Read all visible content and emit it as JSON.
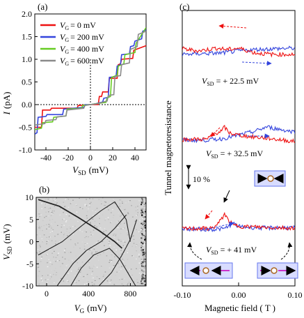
{
  "panel_labels": {
    "a": "(a)",
    "b": "(b)",
    "c": "(c)"
  },
  "panel_a": {
    "ylabel_main": "I",
    "ylabel_unit": "(pA)",
    "xlabel_main": "V",
    "xlabel_sub": "SD",
    "xlabel_unit": "(mV)",
    "legend_prefix_main": "V",
    "legend_prefix_sub": "G",
    "legend_values": [
      "= 0 mV",
      "= 200 mV",
      "= 400 mV",
      "= 600 mV"
    ]
  },
  "panel_b": {
    "ylabel_main": "V",
    "ylabel_sub": "SD",
    "ylabel_unit": "(mV)",
    "xlabel_main": "V",
    "xlabel_sub": "G",
    "xlabel_unit": "(mV)"
  },
  "panel_c": {
    "ylabel": "Tunnel magnetoresistance",
    "xlabel": "Magnetic field ( T )",
    "scalebar": "10 %",
    "vsd_main": "V",
    "vsd_sub": "SD",
    "vsd_values": [
      "= + 22.5 mV",
      "= + 32.5 mV",
      "= + 41 mV"
    ]
  },
  "colors": {
    "red": "#ee1111",
    "blue": "#3344dd",
    "green": "#66cc22",
    "gray": "#8a8a8a"
  },
  "chart_data": [
    {
      "panel": "a",
      "type": "line",
      "xlim": [
        -50,
        50
      ],
      "ylim": [
        -1.0,
        2.0
      ],
      "xticks": [
        -40,
        -20,
        0,
        20,
        40
      ],
      "yticks": [
        -1.0,
        -0.5,
        0.0,
        0.5,
        1.0,
        1.5,
        2.0
      ],
      "series": [
        {
          "name": "VG = 0 mV",
          "color": "red",
          "x": [
            -50,
            -44,
            -43,
            -36,
            -35,
            -12,
            -11,
            0,
            7,
            8,
            10,
            11,
            16,
            17,
            24,
            25,
            27,
            28,
            38,
            39,
            50
          ],
          "y": [
            -0.5,
            -0.5,
            -0.12,
            -0.12,
            -0.08,
            -0.08,
            -0.02,
            0,
            0,
            0.18,
            0.18,
            0.28,
            0.28,
            0.58,
            0.58,
            0.88,
            0.9,
            1.0,
            1.02,
            1.2,
            1.3
          ]
        },
        {
          "name": "VG = 200 mV",
          "color": "blue",
          "x": [
            -50,
            -48,
            -47,
            -40,
            -39,
            -25,
            -24,
            -6,
            -5,
            0,
            5,
            11,
            12,
            16,
            17,
            23,
            24,
            27,
            28,
            35,
            36,
            39,
            40,
            46,
            47,
            50
          ],
          "y": [
            -0.65,
            -0.62,
            -0.28,
            -0.26,
            -0.22,
            -0.22,
            -0.1,
            -0.06,
            0,
            0,
            0.02,
            0.06,
            0.14,
            0.16,
            0.6,
            0.62,
            0.85,
            0.88,
            1.1,
            1.12,
            1.28,
            1.3,
            1.4,
            1.45,
            1.62,
            1.65
          ]
        },
        {
          "name": "VG = 400 mV",
          "color": "green",
          "x": [
            -50,
            -44,
            -43,
            -34,
            -33,
            -22,
            -21,
            -8,
            -7,
            0,
            5,
            14,
            15,
            18,
            19,
            24,
            25,
            30,
            31,
            40,
            41,
            50
          ],
          "y": [
            -0.55,
            -0.52,
            -0.4,
            -0.38,
            -0.28,
            -0.25,
            -0.1,
            -0.08,
            -0.02,
            0,
            0.02,
            0.05,
            0.15,
            0.18,
            0.6,
            0.65,
            0.85,
            0.9,
            1.1,
            1.15,
            1.35,
            1.7
          ]
        },
        {
          "name": "VG = 600 mV",
          "color": "gray",
          "x": [
            -50,
            -41,
            -40,
            -31,
            -30,
            -22,
            -21,
            -6,
            -5,
            0,
            6,
            15,
            16,
            21,
            22,
            27,
            28,
            35,
            36,
            42,
            43,
            50
          ],
          "y": [
            -0.45,
            -0.42,
            -0.35,
            -0.33,
            -0.27,
            -0.25,
            -0.12,
            -0.08,
            -0.02,
            0,
            0.02,
            0.08,
            0.2,
            0.22,
            0.62,
            0.64,
            0.88,
            0.92,
            1.22,
            1.28,
            1.55,
            1.62
          ]
        }
      ]
    },
    {
      "panel": "b",
      "type": "heatmap",
      "xlim": [
        -100,
        950
      ],
      "ylim": [
        -10,
        10
      ],
      "xticks": [
        0,
        400,
        800
      ],
      "yticks": [
        -10,
        -5,
        0,
        5,
        10
      ],
      "lines": [
        {
          "x": [
            -80,
            120,
            300,
            500,
            650,
            720
          ],
          "y": [
            9.5,
            8,
            5.5,
            2.5,
            0,
            -1.5
          ]
        },
        {
          "x": [
            -80,
            150,
            330,
            520,
            650,
            760,
            800
          ],
          "y": [
            -3,
            0,
            3.5,
            7,
            9,
            5,
            0
          ]
        },
        {
          "x": [
            100,
            250,
            380,
            520,
            650,
            760
          ],
          "y": [
            -10,
            -5,
            -2,
            0,
            3,
            6
          ]
        },
        {
          "x": [
            230,
            330,
            450,
            600,
            700,
            800,
            850
          ],
          "y": [
            -10,
            -6,
            -3,
            -1.5,
            -4,
            -8,
            -10
          ]
        },
        {
          "x": [
            500,
            620,
            720,
            800,
            860
          ],
          "y": [
            -10,
            -7,
            -3,
            0.5,
            5
          ]
        }
      ]
    },
    {
      "panel": "c",
      "type": "line",
      "xlim": [
        -0.1,
        0.1
      ],
      "xticks": [
        -0.1,
        0.0,
        0.1
      ],
      "curves": [
        {
          "vsd": "+22.5 mV",
          "offset": 58,
          "red": [
            [
              -0.1,
              2
            ],
            [
              -0.07,
              -1
            ],
            [
              -0.04,
              3
            ],
            [
              -0.02,
              1
            ],
            [
              0,
              3
            ],
            [
              0.03,
              -4
            ],
            [
              0.06,
              -6
            ],
            [
              0.1,
              -6
            ]
          ],
          "blue": [
            [
              -0.1,
              -6
            ],
            [
              -0.07,
              -5
            ],
            [
              -0.03,
              -4
            ],
            [
              0,
              -1
            ],
            [
              0.03,
              1
            ],
            [
              0.06,
              2
            ],
            [
              0.1,
              3
            ]
          ]
        },
        {
          "vsd": "+32.5 mV",
          "offset": 0,
          "red": [
            [
              -0.1,
              0
            ],
            [
              -0.055,
              0.5
            ],
            [
              -0.045,
              8
            ],
            [
              -0.03,
              12
            ],
            [
              -0.025,
              18
            ],
            [
              -0.018,
              10
            ],
            [
              -0.005,
              7
            ],
            [
              0.02,
              4
            ],
            [
              0.05,
              2
            ],
            [
              0.08,
              -1
            ],
            [
              0.1,
              -3
            ]
          ],
          "blue": [
            [
              -0.1,
              -1
            ],
            [
              -0.06,
              -1
            ],
            [
              -0.03,
              1
            ],
            [
              0,
              6
            ],
            [
              0.03,
              12
            ],
            [
              0.05,
              18
            ],
            [
              0.07,
              15
            ],
            [
              0.09,
              12
            ],
            [
              0.1,
              11
            ]
          ]
        },
        {
          "vsd": "+41 mV",
          "offset": -58,
          "red": [
            [
              -0.1,
              0
            ],
            [
              -0.05,
              0.5
            ],
            [
              -0.04,
              4
            ],
            [
              -0.03,
              14
            ],
            [
              -0.025,
              22
            ],
            [
              -0.02,
              14
            ],
            [
              -0.01,
              5
            ],
            [
              0.01,
              3
            ],
            [
              0.05,
              2
            ],
            [
              0.1,
              1
            ]
          ],
          "blue": [
            [
              -0.1,
              0
            ],
            [
              -0.05,
              -1
            ],
            [
              -0.025,
              0
            ],
            [
              -0.01,
              8
            ],
            [
              0,
              3
            ],
            [
              0.02,
              2
            ],
            [
              0.05,
              1
            ],
            [
              0.08,
              2
            ],
            [
              0.1,
              1
            ]
          ]
        }
      ]
    }
  ]
}
